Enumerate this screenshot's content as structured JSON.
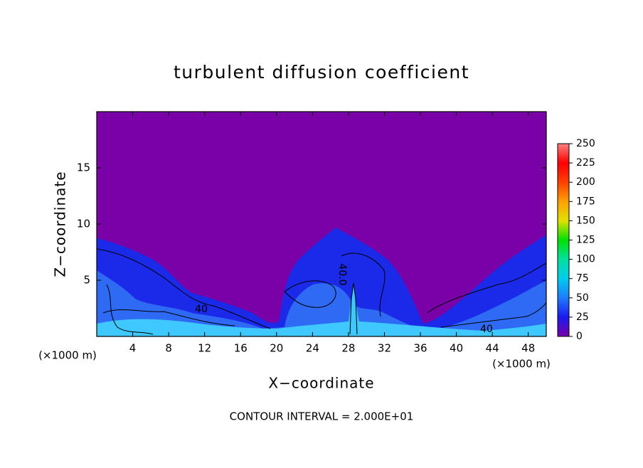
{
  "chart_data": {
    "type": "contour",
    "title": "turbulent diffusion coefficient",
    "x_label": "X−coordinate",
    "y_label": "Z−coordinate",
    "x_unit": "(×1000 m)",
    "y_unit": "(×1000 m)",
    "footer": "CONTOUR INTERVAL = 2.000E+01",
    "xlim": [
      0,
      50
    ],
    "xticks": [
      4,
      8,
      12,
      16,
      20,
      24,
      28,
      32,
      36,
      40,
      44,
      48
    ],
    "ylim": [
      0,
      20
    ],
    "yticks": [
      5,
      10,
      15
    ],
    "contour_labels": [
      "40",
      "40.0",
      "40"
    ],
    "colorbar": {
      "lim": [
        0,
        250
      ],
      "ticks": [
        0,
        25,
        50,
        75,
        100,
        125,
        150,
        175,
        200,
        225,
        250
      ],
      "colors": [
        "#7a00a8",
        "#1a1aee",
        "#1e7bff",
        "#00ccee",
        "#00e0a0",
        "#00e000",
        "#e0e000",
        "#ffa000",
        "#ff4000",
        "#ff0000",
        "#ff8080"
      ]
    }
  }
}
